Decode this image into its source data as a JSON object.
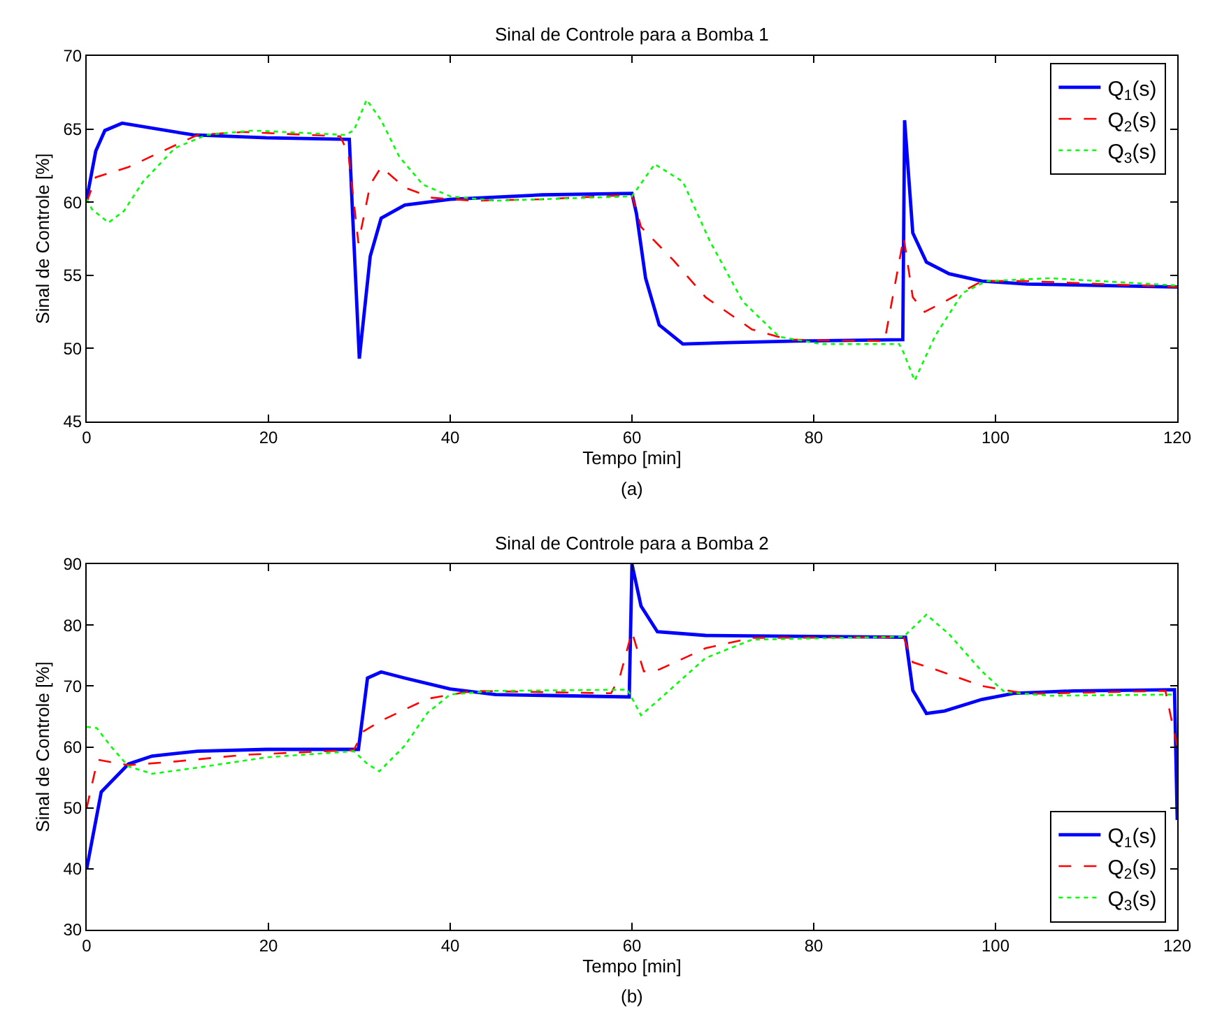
{
  "chart_data": [
    {
      "type": "line",
      "title": "Sinal de Controle para a Bomba 1",
      "xlabel": "Tempo [min]",
      "ylabel": "Sinal de Controle [%]",
      "annotations": [
        "(a)"
      ],
      "xlim": [
        0,
        120
      ],
      "xticks": [
        0,
        20,
        40,
        60,
        80,
        100,
        120
      ],
      "ylim": [
        45,
        70
      ],
      "yticks": [
        45,
        50,
        55,
        60,
        65,
        70
      ],
      "grid": false,
      "legend": "top right",
      "series": [
        {
          "name": "Q$_{1}$(s)",
          "color": "#0000ff",
          "line_style": "solid",
          "x": [
            0,
            1,
            2,
            3.9,
            11.7,
            19.8,
            28.9,
            29.2,
            30.0,
            31.2,
            32.4,
            35,
            40,
            50.1,
            60,
            60.5,
            61.5,
            63,
            65.6,
            70.6,
            78.2,
            89.8,
            90.0,
            90.9,
            92.4,
            94.9,
            98.5,
            103.5,
            120
          ],
          "values": [
            60.2,
            63.5,
            64.9,
            65.4,
            64.6,
            64.4,
            64.3,
            60,
            49.3,
            56.3,
            58.9,
            59.8,
            60.2,
            60.5,
            60.6,
            59.2,
            54.8,
            51.6,
            50.3,
            50.4,
            50.5,
            50.6,
            65.6,
            57.9,
            55.9,
            55.1,
            54.6,
            54.4,
            54.2
          ]
        },
        {
          "name": "Q$_{2}$(s)",
          "color": "#ff0000",
          "line_style": "dashed",
          "x": [
            0,
            1,
            4.6,
            7.7,
            12.2,
            17.3,
            27.9,
            28.8,
            29.9,
            31.2,
            32.4,
            35,
            38,
            42.5,
            50.1,
            60,
            61,
            64.6,
            68.1,
            73.2,
            77.2,
            87.8,
            89.9,
            90.9,
            92.2,
            94.4,
            98.5,
            103.5,
            120
          ],
          "values": [
            60,
            61.7,
            62.4,
            63.3,
            64.6,
            64.8,
            64.5,
            63.3,
            57.2,
            61.2,
            62.4,
            61.0,
            60.3,
            60.1,
            60.2,
            60.5,
            58.3,
            56.0,
            53.5,
            51.3,
            50.6,
            50.5,
            57.6,
            53.5,
            52.5,
            53.2,
            54.6,
            54.6,
            54.2
          ]
        },
        {
          "name": "Q$_{3}$(s)",
          "color": "#00ff00",
          "line_style": "dotted",
          "x": [
            0,
            0.6,
            2.4,
            4.1,
            6.2,
            9.7,
            13.2,
            18.3,
            28.4,
            29.4,
            30.8,
            32.4,
            34.4,
            37,
            40,
            45,
            60,
            62.5,
            65.6,
            68.6,
            72.2,
            76.2,
            80.8,
            89.4,
            89.9,
            91.1,
            93.4,
            96.4,
            99,
            106,
            120
          ],
          "values": [
            60.2,
            59.5,
            58.6,
            59.4,
            61.4,
            63.7,
            64.6,
            64.9,
            64.6,
            64.9,
            67.0,
            65.6,
            63.1,
            61.2,
            60.4,
            60.1,
            60.4,
            62.6,
            61.4,
            57.3,
            53.2,
            50.8,
            50.3,
            50.3,
            49.7,
            47.8,
            50.9,
            53.8,
            54.6,
            54.8,
            54.3
          ]
        }
      ]
    },
    {
      "type": "line",
      "title": "Sinal de Controle para a Bomba 2",
      "xlabel": "Tempo [min]",
      "ylabel": "Sinal de Controle [%]",
      "annotations": [
        "(b)"
      ],
      "xlim": [
        0,
        120
      ],
      "xticks": [
        0,
        20,
        40,
        60,
        80,
        100,
        120
      ],
      "ylim": [
        30,
        90
      ],
      "yticks": [
        30,
        40,
        50,
        60,
        70,
        80,
        90
      ],
      "grid": false,
      "legend": "bottom right",
      "series": [
        {
          "name": "Q$_{1}$(s)",
          "color": "#0000ff",
          "line_style": "solid",
          "x": [
            0,
            1.6,
            4.6,
            7.2,
            12.2,
            19.8,
            29.9,
            30.9,
            32.4,
            35,
            40,
            45,
            59.7,
            60,
            61,
            62.8,
            68.1,
            90.1,
            90.9,
            92.4,
            94.4,
            98.5,
            102,
            108.6,
            119.7,
            120
          ],
          "values": [
            40,
            52.6,
            57.2,
            58.5,
            59.3,
            59.6,
            59.6,
            71.3,
            72.3,
            71.3,
            69.5,
            68.6,
            68.2,
            90,
            83.1,
            78.9,
            78.3,
            78.0,
            69.3,
            65.5,
            65.9,
            67.8,
            68.8,
            69.2,
            69.4,
            48
          ]
        },
        {
          "name": "Q$_{2}$(s)",
          "color": "#ff0000",
          "line_style": "dashed",
          "x": [
            0,
            1.2,
            4.6,
            9.7,
            17.3,
            29.4,
            30.4,
            32.4,
            37.5,
            42.5,
            57.7,
            58.7,
            60,
            61.3,
            63,
            68.1,
            73.2,
            89.9,
            90.9,
            93.4,
            98.5,
            103.5,
            118.7,
            120
          ],
          "values": [
            50,
            57.9,
            57.0,
            57.6,
            58.7,
            59.5,
            62.5,
            64.3,
            67.9,
            69.2,
            68.8,
            71.7,
            78.9,
            72.4,
            72.7,
            76.2,
            77.9,
            78.0,
            73.9,
            72.7,
            70.0,
            68.7,
            69.2,
            60
          ]
        },
        {
          "name": "Q$_{3}$(s)",
          "color": "#00ff00",
          "line_style": "dotted",
          "x": [
            0,
            1.1,
            2.6,
            4.6,
            7.2,
            12.2,
            19.8,
            29.4,
            30.9,
            32.2,
            35,
            37.5,
            40,
            45,
            59.5,
            61,
            63,
            68.1,
            73.2,
            89.9,
            92.4,
            94.9,
            98.5,
            101,
            106,
            119.7
          ],
          "values": [
            63.3,
            63.1,
            60.2,
            56.8,
            55.6,
            56.6,
            58.3,
            59.3,
            57.2,
            56.0,
            60.2,
            65.6,
            68.6,
            69.2,
            69.4,
            65.2,
            67.8,
            74.6,
            77.6,
            78.1,
            81.7,
            78.5,
            72.4,
            69.0,
            68.4,
            68.6
          ]
        }
      ]
    }
  ]
}
